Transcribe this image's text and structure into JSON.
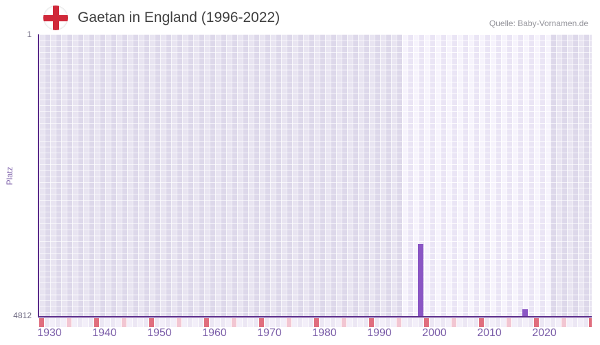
{
  "header": {
    "title": "Gaetan in England (1996-2022)",
    "source": "Quelle: Baby-Vornamen.de",
    "flag_icon": "england-flag-icon"
  },
  "chart_data": {
    "type": "bar",
    "title": "Gaetan in England (1996-2022)",
    "xlabel": "",
    "ylabel": "Platz",
    "y_axis": {
      "top_tick": "1",
      "bottom_tick": "4812",
      "min": 1,
      "max": 4812,
      "inverted": true
    },
    "x_axis": {
      "tick_labels": [
        "1930",
        "1940",
        "1950",
        "1960",
        "1970",
        "1980",
        "1990",
        "2000",
        "2010",
        "2020"
      ],
      "start_year": 1930,
      "years_per_tick": 10
    },
    "highlight_range": {
      "from": 1996,
      "to": 2022
    },
    "bars": [
      {
        "year": 1997,
        "rank": 3575
      },
      {
        "year": 2016,
        "rank": 4700
      }
    ],
    "marker_strip": {
      "major_every_years": 10,
      "minor_every_years": 5
    },
    "grid": true,
    "legend": "none"
  },
  "colors": {
    "bar": "#8a56c4",
    "axis": "#5a2b8a",
    "tick_label": "#7c5fa9",
    "y_tick_label": "#6d6880",
    "marker_major": "#e06e7e",
    "marker_minor": "#f2c6d2",
    "strip_even": "#f3eff9",
    "strip_odd": "#ece7f4",
    "title_text": "#3f3f3f",
    "source_text": "#95959c",
    "flag_cross": "#d0293a"
  }
}
